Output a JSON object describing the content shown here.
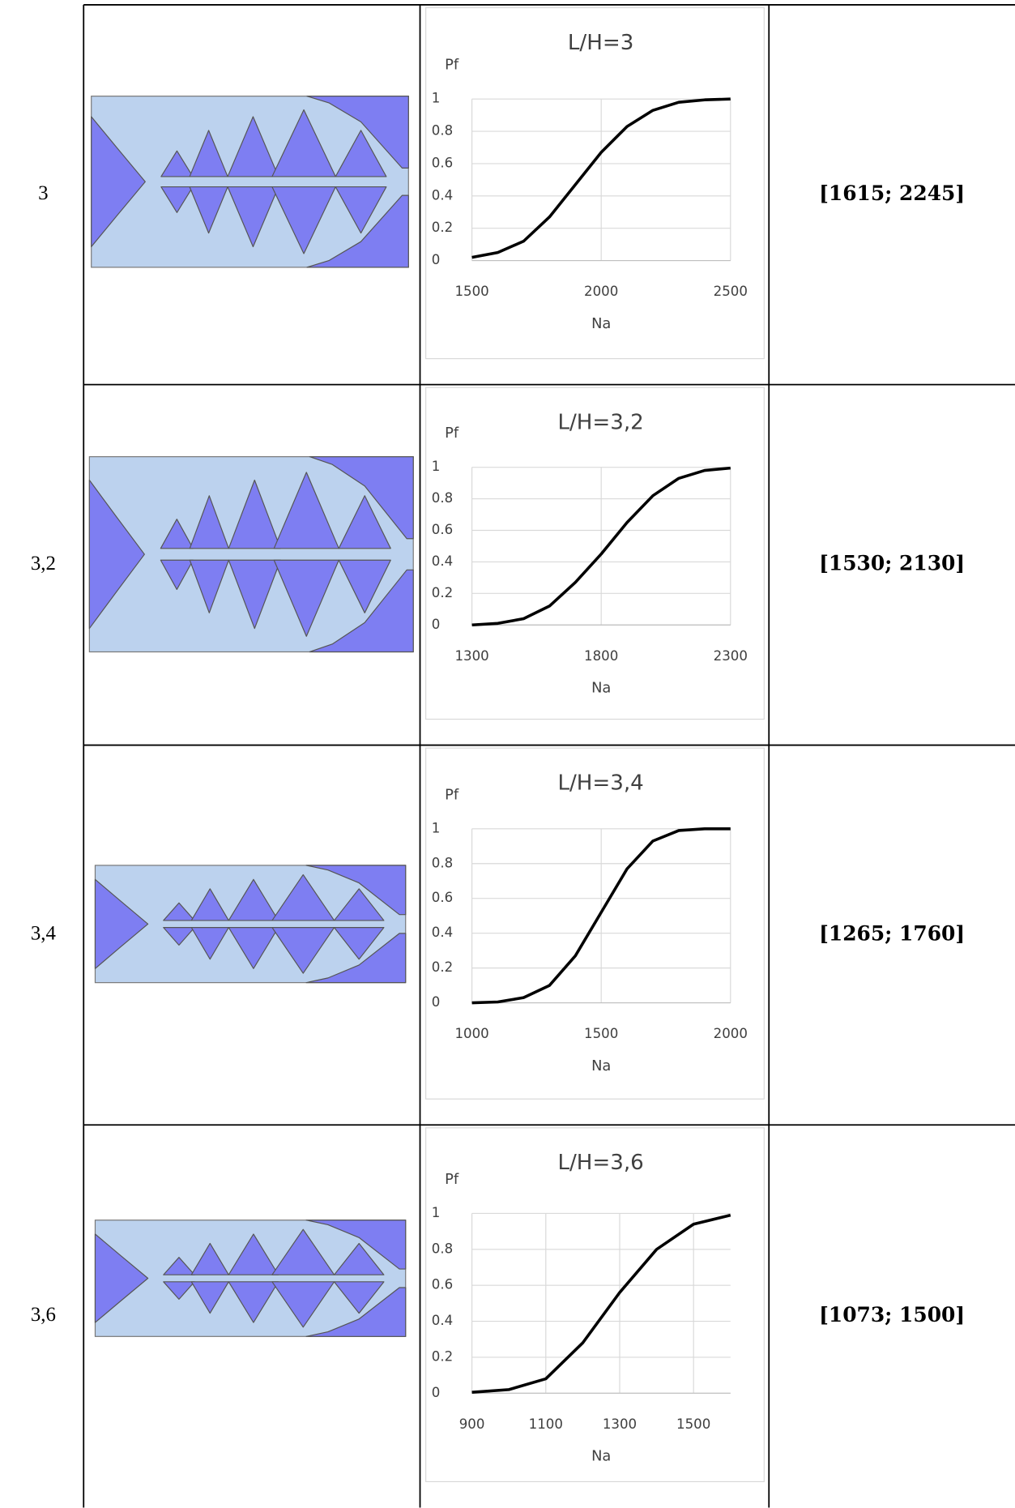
{
  "table": {
    "rows": [
      {
        "ratio": "3",
        "interval": "[1615; 2245]",
        "chart": {
          "type": "line",
          "title": "L/H=3",
          "y_label": "Pf",
          "x_label": "Na",
          "color": "#000000",
          "grid": true,
          "x": [
            1500,
            1600,
            1700,
            1800,
            1900,
            2000,
            2100,
            2200,
            2300,
            2400,
            2500
          ],
          "values": [
            0.02,
            0.05,
            0.12,
            0.27,
            0.47,
            0.67,
            0.83,
            0.93,
            0.98,
            0.995,
            1.0
          ],
          "xlim": [
            1500,
            2500
          ],
          "xticks": [
            1500,
            2000,
            2500
          ],
          "ylim": [
            0,
            1
          ],
          "yticks": [
            0,
            0.2,
            0.4,
            0.6,
            0.8,
            1
          ]
        }
      },
      {
        "ratio": "3,2",
        "interval": "[1530; 2130]",
        "chart": {
          "type": "line",
          "title": "L/H=3,2",
          "y_label": "Pf",
          "x_label": "Na",
          "color": "#000000",
          "grid": true,
          "x": [
            1300,
            1400,
            1500,
            1600,
            1700,
            1800,
            1900,
            2000,
            2100,
            2200,
            2300
          ],
          "values": [
            0.0,
            0.01,
            0.04,
            0.12,
            0.27,
            0.45,
            0.65,
            0.82,
            0.93,
            0.98,
            0.995
          ],
          "xlim": [
            1300,
            2300
          ],
          "xticks": [
            1300,
            1800,
            2300
          ],
          "ylim": [
            0,
            1
          ],
          "yticks": [
            0,
            0.2,
            0.4,
            0.6,
            0.8,
            1
          ]
        }
      },
      {
        "ratio": "3,4",
        "interval": "[1265; 1760]",
        "chart": {
          "type": "line",
          "title": "L/H=3,4",
          "y_label": "Pf",
          "x_label": "Na",
          "color": "#000000",
          "grid": true,
          "x": [
            1000,
            1100,
            1200,
            1300,
            1400,
            1500,
            1600,
            1700,
            1800,
            1900,
            2000
          ],
          "values": [
            0.0,
            0.005,
            0.03,
            0.1,
            0.27,
            0.52,
            0.77,
            0.93,
            0.99,
            1.0,
            1.0
          ],
          "xlim": [
            1000,
            2000
          ],
          "xticks": [
            1000,
            1500,
            2000
          ],
          "ylim": [
            0,
            1
          ],
          "yticks": [
            0,
            0.2,
            0.4,
            0.6,
            0.8,
            1
          ]
        }
      },
      {
        "ratio": "3,6",
        "interval": "[1073; 1500]",
        "chart": {
          "type": "line",
          "title": "L/H=3,6",
          "y_label": "Pf",
          "x_label": "Na",
          "color": "#000000",
          "grid": true,
          "x": [
            900,
            1000,
            1100,
            1200,
            1300,
            1400,
            1500,
            1600
          ],
          "values": [
            0.005,
            0.02,
            0.08,
            0.28,
            0.56,
            0.8,
            0.94,
            0.99
          ],
          "xlim": [
            900,
            1600
          ],
          "xticks": [
            900,
            1100,
            1300,
            1500
          ],
          "ylim": [
            0,
            1
          ],
          "yticks": [
            0,
            0.2,
            0.4,
            0.6,
            0.8,
            1
          ]
        }
      }
    ]
  }
}
